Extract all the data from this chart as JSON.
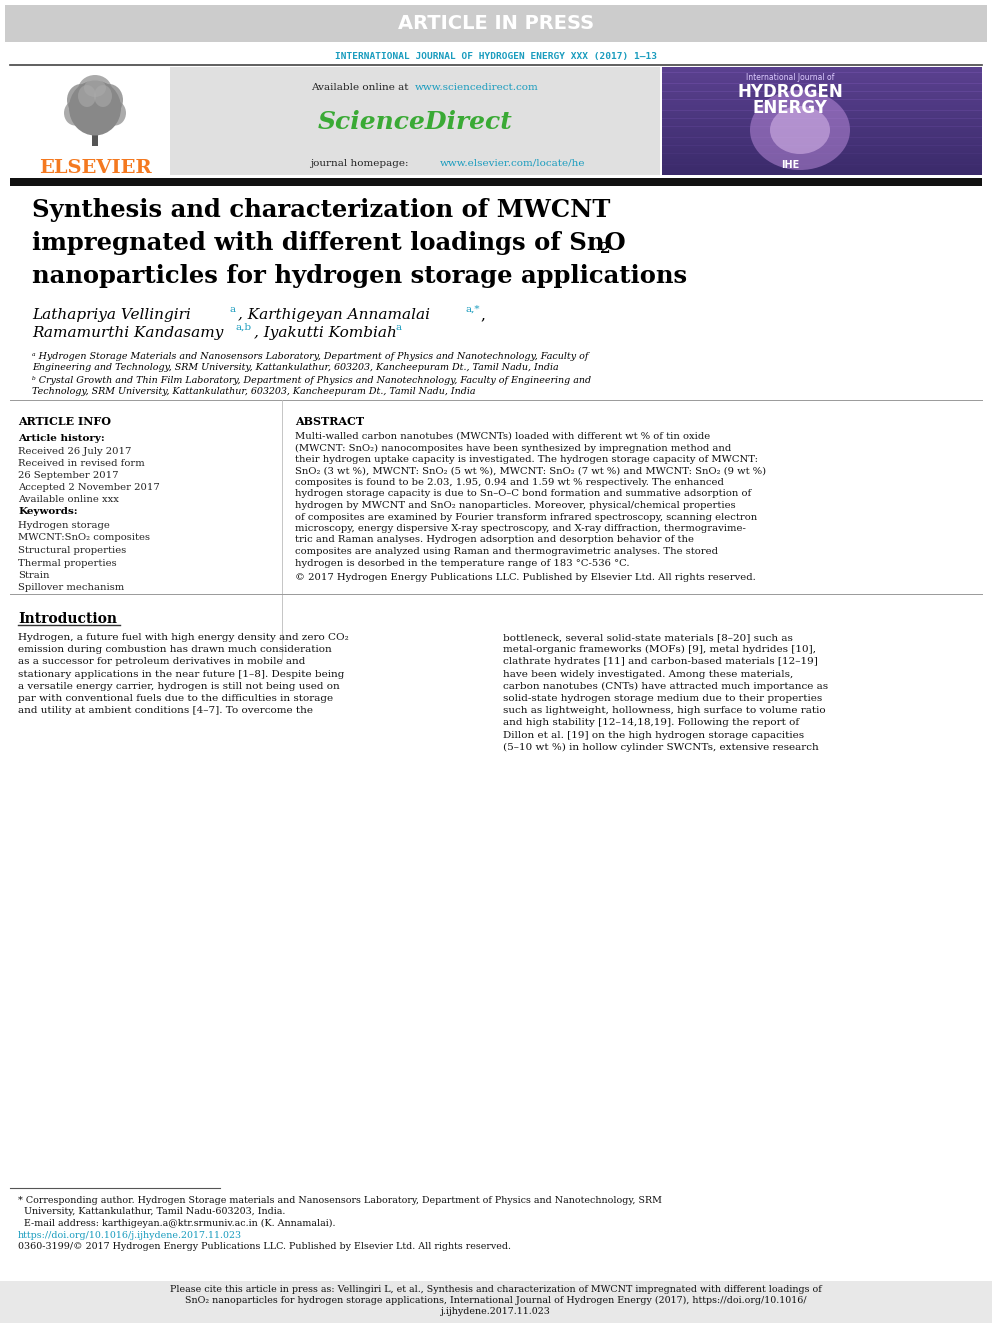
{
  "article_in_press_text": "ARTICLE IN PRESS",
  "header_bg": "#cccccc",
  "journal_name": "INTERNATIONAL JOURNAL OF HYDROGEN ENERGY XXX (2017) 1–13",
  "journal_color": "#1a9cbe",
  "sciencedirect_url": "www.sciencedirect.com",
  "sciencedirect_text": "ScienceDirect",
  "sciencedirect_color": "#3aaa35",
  "journal_url": "www.elsevier.com/locate/he",
  "url_color": "#1a9cbe",
  "elsevier_color": "#f47920",
  "mid_box_color": "#e0e0e0",
  "title_line1": "Synthesis and characterization of MWCNT",
  "title_line2": "impregnated with different loadings of SnO",
  "title_line2_sub": "2",
  "title_line3": "nanoparticles for hydrogen storage applications",
  "affil_a_lines": [
    "ᵃ Hydrogen Storage Materials and Nanosensors Laboratory, Department of Physics and Nanotechnology, Faculty of",
    "Engineering and Technology, SRM University, Kattankulathur, 603203, Kancheepuram Dt., Tamil Nadu, India"
  ],
  "affil_b_lines": [
    "ᵇ Crystal Growth and Thin Film Laboratory, Department of Physics and Nanotechnology, Faculty of Engineering and",
    "Technology, SRM University, Kattankulathur, 603203, Kancheepuram Dt., Tamil Nadu, India"
  ],
  "article_info_header": "ARTICLE INFO",
  "article_history_header": "Article history:",
  "history_lines": [
    "Received 26 July 2017",
    "Received in revised form",
    "26 September 2017",
    "Accepted 2 November 2017",
    "Available online xxx"
  ],
  "keywords_header": "Keywords:",
  "keywords": [
    "Hydrogen storage",
    "MWCNT:SnO₂ composites",
    "Structural properties",
    "Thermal properties",
    "Strain",
    "Spillover mechanism"
  ],
  "abstract_header": "ABSTRACT",
  "abstract_lines": [
    "Multi-walled carbon nanotubes (MWCNTs) loaded with different wt % of tin oxide",
    "(MWCNT: SnO₂) nanocomposites have been synthesized by impregnation method and",
    "their hydrogen uptake capacity is investigated. The hydrogen storage capacity of MWCNT:",
    "SnO₂ (3 wt %), MWCNT: SnO₂ (5 wt %), MWCNT: SnO₂ (7 wt %) and MWCNT: SnO₂ (9 wt %)",
    "composites is found to be 2.03, 1.95, 0.94 and 1.59 wt % respectively. The enhanced",
    "hydrogen storage capacity is due to Sn–O–C bond formation and summative adsorption of",
    "hydrogen by MWCNT and SnO₂ nanoparticles. Moreover, physical/chemical properties",
    "of composites are examined by Fourier transform infrared spectroscopy, scanning electron",
    "microscopy, energy dispersive X-ray spectroscopy, and X-ray diffraction, thermogravime-",
    "tric and Raman analyses. Hydrogen adsorption and desorption behavior of the",
    "composites are analyzed using Raman and thermogravimetric analyses. The stored",
    "hydrogen is desorbed in the temperature range of 183 °C-536 °C."
  ],
  "copyright_text": "© 2017 Hydrogen Energy Publications LLC. Published by Elsevier Ltd. All rights reserved.",
  "intro_header": "Introduction",
  "left_intro_lines": [
    "Hydrogen, a future fuel with high energy density and zero CO₂",
    "emission during combustion has drawn much consideration",
    "as a successor for petroleum derivatives in mobile and",
    "stationary applications in the near future [1–8]. Despite being",
    "a versatile energy carrier, hydrogen is still not being used on",
    "par with conventional fuels due to the difficulties in storage",
    "and utility at ambient conditions [4–7]. To overcome the"
  ],
  "right_intro_lines": [
    "bottleneck, several solid-state materials [8–20] such as",
    "metal-organic frameworks (MOFs) [9], metal hydrides [10],",
    "clathrate hydrates [11] and carbon-based materials [12–19]",
    "have been widely investigated. Among these materials,",
    "carbon nanotubes (CNTs) have attracted much importance as",
    "solid-state hydrogen storage medium due to their properties",
    "such as lightweight, hollowness, high surface to volume ratio",
    "and high stability [12–14,18,19]. Following the report of",
    "Dillon et al. [19] on the high hydrogen storage capacities",
    "(5–10 wt %) in hollow cylinder SWCNTs, extensive research"
  ],
  "footnote_lines": [
    "* Corresponding author. Hydrogen Storage materials and Nanosensors Laboratory, Department of Physics and Nanotechnology, SRM",
    "  University, Kattankulathur, Tamil Nadu-603203, India.",
    "  E-mail address: karthigeyan.a@ktr.srmuniv.ac.in (K. Annamalai).",
    "https://doi.org/10.1016/j.ijhydene.2017.11.023",
    "0360-3199/© 2017 Hydrogen Energy Publications LLC. Published by Elsevier Ltd. All rights reserved."
  ],
  "cite_lines": [
    "Please cite this article in press as: Vellingiri L, et al., Synthesis and characterization of MWCNT impregnated with different loadings of",
    "SnO₂ nanoparticles for hydrogen storage applications, International Journal of Hydrogen Energy (2017), https://doi.org/10.1016/",
    "j.ijhydene.2017.11.023"
  ],
  "bg_color": "#ffffff",
  "black": "#000000",
  "dark_text": "#111111",
  "gray_text": "#444444"
}
